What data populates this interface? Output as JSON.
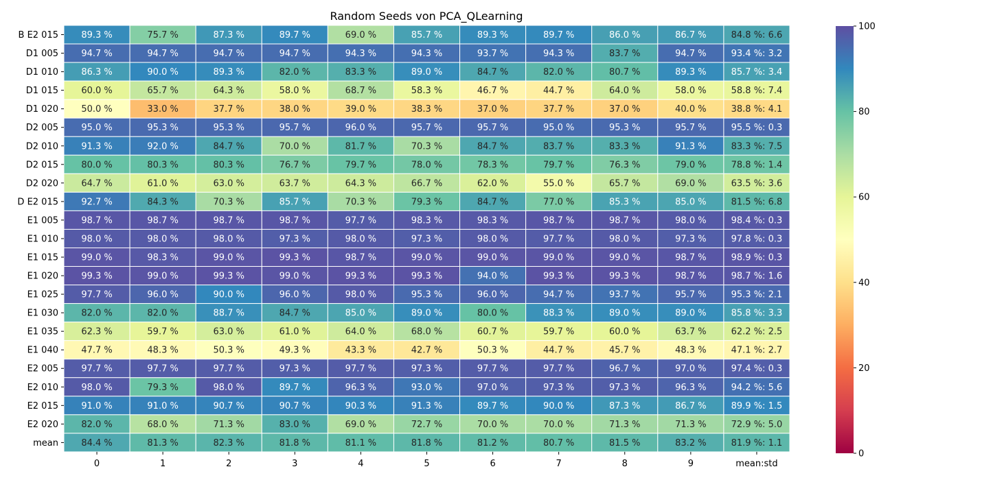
{
  "chart_data": {
    "type": "heatmap",
    "title": "Random Seeds von PCA_QLearning",
    "x_categories": [
      "0",
      "1",
      "2",
      "3",
      "4",
      "5",
      "6",
      "7",
      "8",
      "9",
      "mean:std"
    ],
    "y_categories": [
      "B E2 015",
      "D1 005",
      "D1 010",
      "D1 015",
      "D1 020",
      "D2 005",
      "D2 010",
      "D2 015",
      "D2 020",
      "D E2 015",
      "E1 005",
      "E1 010",
      "E1 015",
      "E1 020",
      "E1 025",
      "E1 030",
      "E1 035",
      "E1 040",
      "E2 005",
      "E2 010",
      "E2 015",
      "E2 020",
      "mean"
    ],
    "values": [
      [
        89.3,
        75.7,
        87.3,
        89.7,
        69.0,
        85.7,
        89.3,
        89.7,
        86.0,
        86.7,
        84.8
      ],
      [
        94.7,
        94.7,
        94.7,
        94.7,
        94.3,
        94.3,
        93.7,
        94.3,
        83.7,
        94.7,
        93.4
      ],
      [
        86.3,
        90.0,
        89.3,
        82.0,
        83.3,
        89.0,
        84.7,
        82.0,
        80.7,
        89.3,
        85.7
      ],
      [
        60.0,
        65.7,
        64.3,
        58.0,
        68.7,
        58.3,
        46.7,
        44.7,
        64.0,
        58.0,
        58.8
      ],
      [
        50.0,
        33.0,
        37.7,
        38.0,
        39.0,
        38.3,
        37.0,
        37.7,
        37.0,
        40.0,
        38.8
      ],
      [
        95.0,
        95.3,
        95.3,
        95.7,
        96.0,
        95.7,
        95.7,
        95.0,
        95.3,
        95.7,
        95.5
      ],
      [
        91.3,
        92.0,
        84.7,
        70.0,
        81.7,
        70.3,
        84.7,
        83.7,
        83.3,
        91.3,
        83.3
      ],
      [
        80.0,
        80.3,
        80.3,
        76.7,
        79.7,
        78.0,
        78.3,
        79.7,
        76.3,
        79.0,
        78.8
      ],
      [
        64.7,
        61.0,
        63.0,
        63.7,
        64.3,
        66.7,
        62.0,
        55.0,
        65.7,
        69.0,
        63.5
      ],
      [
        92.7,
        84.3,
        70.3,
        85.7,
        70.3,
        79.3,
        84.7,
        77.0,
        85.3,
        85.0,
        81.5
      ],
      [
        98.7,
        98.7,
        98.7,
        98.7,
        97.7,
        98.3,
        98.3,
        98.7,
        98.7,
        98.0,
        98.4
      ],
      [
        98.0,
        98.0,
        98.0,
        97.3,
        98.0,
        97.3,
        98.0,
        97.7,
        98.0,
        97.3,
        97.8
      ],
      [
        99.0,
        98.3,
        99.0,
        99.3,
        98.7,
        99.0,
        99.0,
        99.0,
        99.0,
        98.7,
        98.9
      ],
      [
        99.3,
        99.0,
        99.3,
        99.0,
        99.3,
        99.3,
        94.0,
        99.3,
        99.3,
        98.7,
        98.7
      ],
      [
        97.7,
        96.0,
        90.0,
        96.0,
        98.0,
        95.3,
        96.0,
        94.7,
        93.7,
        95.7,
        95.3
      ],
      [
        82.0,
        82.0,
        88.7,
        84.7,
        85.0,
        89.0,
        80.0,
        88.3,
        89.0,
        89.0,
        85.8
      ],
      [
        62.3,
        59.7,
        63.0,
        61.0,
        64.0,
        68.0,
        60.7,
        59.7,
        60.0,
        63.7,
        62.2
      ],
      [
        47.7,
        48.3,
        50.3,
        49.3,
        43.3,
        42.7,
        50.3,
        44.7,
        45.7,
        48.3,
        47.1
      ],
      [
        97.7,
        97.7,
        97.7,
        97.3,
        97.7,
        97.3,
        97.7,
        97.7,
        96.7,
        97.0,
        97.4
      ],
      [
        98.0,
        79.3,
        98.0,
        89.7,
        96.3,
        93.0,
        97.0,
        97.3,
        97.3,
        96.3,
        94.2
      ],
      [
        91.0,
        91.0,
        90.7,
        90.7,
        90.3,
        91.3,
        89.7,
        90.0,
        87.3,
        86.7,
        89.9
      ],
      [
        82.0,
        68.0,
        71.3,
        83.0,
        69.0,
        72.7,
        70.0,
        70.0,
        71.3,
        71.3,
        72.9
      ],
      [
        84.4,
        81.3,
        82.3,
        81.8,
        81.1,
        81.8,
        81.2,
        80.7,
        81.5,
        83.2,
        81.9
      ]
    ],
    "labels": [
      [
        "89.3 %",
        "75.7 %",
        "87.3 %",
        "89.7 %",
        "69.0 %",
        "85.7 %",
        "89.3 %",
        "89.7 %",
        "86.0 %",
        "86.7 %",
        "84.8 %: 6.6"
      ],
      [
        "94.7 %",
        "94.7 %",
        "94.7 %",
        "94.7 %",
        "94.3 %",
        "94.3 %",
        "93.7 %",
        "94.3 %",
        "83.7 %",
        "94.7 %",
        "93.4 %: 3.2"
      ],
      [
        "86.3 %",
        "90.0 %",
        "89.3 %",
        "82.0 %",
        "83.3 %",
        "89.0 %",
        "84.7 %",
        "82.0 %",
        "80.7 %",
        "89.3 %",
        "85.7 %: 3.4"
      ],
      [
        "60.0 %",
        "65.7 %",
        "64.3 %",
        "58.0 %",
        "68.7 %",
        "58.3 %",
        "46.7 %",
        "44.7 %",
        "64.0 %",
        "58.0 %",
        "58.8 %: 7.4"
      ],
      [
        "50.0 %",
        "33.0 %",
        "37.7 %",
        "38.0 %",
        "39.0 %",
        "38.3 %",
        "37.0 %",
        "37.7 %",
        "37.0 %",
        "40.0 %",
        "38.8 %: 4.1"
      ],
      [
        "95.0 %",
        "95.3 %",
        "95.3 %",
        "95.7 %",
        "96.0 %",
        "95.7 %",
        "95.7 %",
        "95.0 %",
        "95.3 %",
        "95.7 %",
        "95.5 %: 0.3"
      ],
      [
        "91.3 %",
        "92.0 %",
        "84.7 %",
        "70.0 %",
        "81.7 %",
        "70.3 %",
        "84.7 %",
        "83.7 %",
        "83.3 %",
        "91.3 %",
        "83.3 %: 7.5"
      ],
      [
        "80.0 %",
        "80.3 %",
        "80.3 %",
        "76.7 %",
        "79.7 %",
        "78.0 %",
        "78.3 %",
        "79.7 %",
        "76.3 %",
        "79.0 %",
        "78.8 %: 1.4"
      ],
      [
        "64.7 %",
        "61.0 %",
        "63.0 %",
        "63.7 %",
        "64.3 %",
        "66.7 %",
        "62.0 %",
        "55.0 %",
        "65.7 %",
        "69.0 %",
        "63.5 %: 3.6"
      ],
      [
        "92.7 %",
        "84.3 %",
        "70.3 %",
        "85.7 %",
        "70.3 %",
        "79.3 %",
        "84.7 %",
        "77.0 %",
        "85.3 %",
        "85.0 %",
        "81.5 %: 6.8"
      ],
      [
        "98.7 %",
        "98.7 %",
        "98.7 %",
        "98.7 %",
        "97.7 %",
        "98.3 %",
        "98.3 %",
        "98.7 %",
        "98.7 %",
        "98.0 %",
        "98.4 %: 0.3"
      ],
      [
        "98.0 %",
        "98.0 %",
        "98.0 %",
        "97.3 %",
        "98.0 %",
        "97.3 %",
        "98.0 %",
        "97.7 %",
        "98.0 %",
        "97.3 %",
        "97.8 %: 0.3"
      ],
      [
        "99.0 %",
        "98.3 %",
        "99.0 %",
        "99.3 %",
        "98.7 %",
        "99.0 %",
        "99.0 %",
        "99.0 %",
        "99.0 %",
        "98.7 %",
        "98.9 %: 0.3"
      ],
      [
        "99.3 %",
        "99.0 %",
        "99.3 %",
        "99.0 %",
        "99.3 %",
        "99.3 %",
        "94.0 %",
        "99.3 %",
        "99.3 %",
        "98.7 %",
        "98.7 %: 1.6"
      ],
      [
        "97.7 %",
        "96.0 %",
        "90.0 %",
        "96.0 %",
        "98.0 %",
        "95.3 %",
        "96.0 %",
        "94.7 %",
        "93.7 %",
        "95.7 %",
        "95.3 %: 2.1"
      ],
      [
        "82.0 %",
        "82.0 %",
        "88.7 %",
        "84.7 %",
        "85.0 %",
        "89.0 %",
        "80.0 %",
        "88.3 %",
        "89.0 %",
        "89.0 %",
        "85.8 %: 3.3"
      ],
      [
        "62.3 %",
        "59.7 %",
        "63.0 %",
        "61.0 %",
        "64.0 %",
        "68.0 %",
        "60.7 %",
        "59.7 %",
        "60.0 %",
        "63.7 %",
        "62.2 %: 2.5"
      ],
      [
        "47.7 %",
        "48.3 %",
        "50.3 %",
        "49.3 %",
        "43.3 %",
        "42.7 %",
        "50.3 %",
        "44.7 %",
        "45.7 %",
        "48.3 %",
        "47.1 %: 2.7"
      ],
      [
        "97.7 %",
        "97.7 %",
        "97.7 %",
        "97.3 %",
        "97.7 %",
        "97.3 %",
        "97.7 %",
        "97.7 %",
        "96.7 %",
        "97.0 %",
        "97.4 %: 0.3"
      ],
      [
        "98.0 %",
        "79.3 %",
        "98.0 %",
        "89.7 %",
        "96.3 %",
        "93.0 %",
        "97.0 %",
        "97.3 %",
        "97.3 %",
        "96.3 %",
        "94.2 %: 5.6"
      ],
      [
        "91.0 %",
        "91.0 %",
        "90.7 %",
        "90.7 %",
        "90.3 %",
        "91.3 %",
        "89.7 %",
        "90.0 %",
        "87.3 %",
        "86.7 %",
        "89.9 %: 1.5"
      ],
      [
        "82.0 %",
        "68.0 %",
        "71.3 %",
        "83.0 %",
        "69.0 %",
        "72.7 %",
        "70.0 %",
        "70.0 %",
        "71.3 %",
        "71.3 %",
        "72.9 %: 5.0"
      ],
      [
        "84.4 %",
        "81.3 %",
        "82.3 %",
        "81.8 %",
        "81.1 %",
        "81.8 %",
        "81.2 %",
        "80.7 %",
        "81.5 %",
        "83.2 %",
        "81.9 %: 1.1"
      ]
    ],
    "colorbar": {
      "min": 0,
      "max": 100,
      "ticks": [
        0,
        20,
        40,
        60,
        80,
        100
      ],
      "colormap": "Spectral"
    },
    "xlabel": "",
    "ylabel": ""
  }
}
